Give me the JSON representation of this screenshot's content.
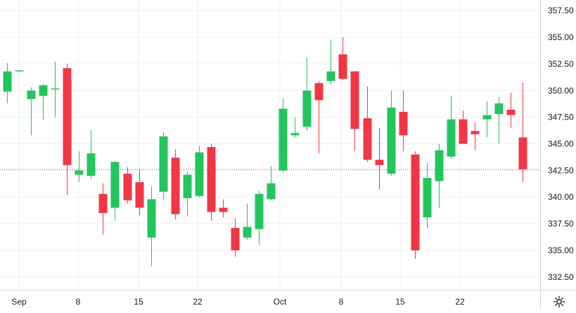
{
  "chart_data": {
    "type": "candlestick",
    "y_axis": {
      "ticks": [
        "357.50",
        "355.00",
        "352.50",
        "350.00",
        "347.50",
        "345.00",
        "342.50",
        "340.00",
        "337.50",
        "335.00",
        "332.50"
      ],
      "range": [
        331.3,
        358.5
      ]
    },
    "x_axis": {
      "ticks": [
        "Sep",
        "8",
        "15",
        "22",
        "Oct",
        "8",
        "15",
        "22"
      ]
    },
    "reference_line": {
      "value": 342.6,
      "style": "dotted",
      "color": "#f23645"
    },
    "grid": true,
    "colors": {
      "up": "#22c55e",
      "down": "#f23645",
      "grid": "#eceff3",
      "axis_text": "#131722"
    },
    "candles": [
      {
        "t": 0,
        "o": 349.9,
        "h": 352.6,
        "l": 348.8,
        "c": 351.8
      },
      {
        "t": 1,
        "o": 351.9,
        "h": 351.9,
        "l": 351.7,
        "c": 351.9
      },
      {
        "t": 2,
        "o": 349.2,
        "h": 350.3,
        "l": 345.8,
        "c": 350.0
      },
      {
        "t": 3,
        "o": 349.5,
        "h": 350.6,
        "l": 347.2,
        "c": 350.5
      },
      {
        "t": 4,
        "o": 350.1,
        "h": 352.7,
        "l": 347.5,
        "c": 350.2
      },
      {
        "t": 5,
        "o": 352.1,
        "h": 352.5,
        "l": 340.2,
        "c": 343.0
      },
      {
        "t": 6,
        "o": 342.1,
        "h": 344.3,
        "l": 341.4,
        "c": 342.5
      },
      {
        "t": 7,
        "o": 342.0,
        "h": 346.3,
        "l": 341.7,
        "c": 344.1
      },
      {
        "t": 8,
        "o": 340.3,
        "h": 341.3,
        "l": 336.5,
        "c": 338.5
      },
      {
        "t": 9,
        "o": 339.0,
        "h": 343.4,
        "l": 337.8,
        "c": 343.3
      },
      {
        "t": 10,
        "o": 342.2,
        "h": 342.8,
        "l": 339.4,
        "c": 339.7
      },
      {
        "t": 11,
        "o": 341.4,
        "h": 342.6,
        "l": 338.3,
        "c": 339.0
      },
      {
        "t": 12,
        "o": 336.2,
        "h": 341.0,
        "l": 333.5,
        "c": 339.8
      },
      {
        "t": 13,
        "o": 340.5,
        "h": 346.1,
        "l": 339.8,
        "c": 345.7
      },
      {
        "t": 14,
        "o": 343.7,
        "h": 344.5,
        "l": 337.9,
        "c": 338.4
      },
      {
        "t": 15,
        "o": 339.9,
        "h": 342.4,
        "l": 338.2,
        "c": 342.1
      },
      {
        "t": 16,
        "o": 340.1,
        "h": 344.8,
        "l": 340.0,
        "c": 344.2
      },
      {
        "t": 17,
        "o": 344.7,
        "h": 345.0,
        "l": 337.8,
        "c": 338.6
      },
      {
        "t": 18,
        "o": 339.0,
        "h": 339.8,
        "l": 338.1,
        "c": 338.6
      },
      {
        "t": 19,
        "o": 337.1,
        "h": 338.0,
        "l": 334.4,
        "c": 335.0
      },
      {
        "t": 20,
        "o": 336.2,
        "h": 339.4,
        "l": 336.0,
        "c": 337.2
      },
      {
        "t": 21,
        "o": 337.0,
        "h": 340.6,
        "l": 335.5,
        "c": 340.3
      },
      {
        "t": 22,
        "o": 339.8,
        "h": 342.9,
        "l": 339.7,
        "c": 341.3
      },
      {
        "t": 23,
        "o": 342.5,
        "h": 349.3,
        "l": 342.3,
        "c": 348.3
      },
      {
        "t": 24,
        "o": 345.8,
        "h": 347.5,
        "l": 345.6,
        "c": 346.0
      },
      {
        "t": 25,
        "o": 346.6,
        "h": 353.1,
        "l": 346.2,
        "c": 350.0
      },
      {
        "t": 26,
        "o": 350.7,
        "h": 350.9,
        "l": 344.1,
        "c": 349.1
      },
      {
        "t": 27,
        "o": 350.9,
        "h": 354.8,
        "l": 350.6,
        "c": 351.8
      },
      {
        "t": 28,
        "o": 353.4,
        "h": 355.0,
        "l": 351.0,
        "c": 351.1
      },
      {
        "t": 29,
        "o": 351.8,
        "h": 351.8,
        "l": 344.3,
        "c": 346.4
      },
      {
        "t": 30,
        "o": 347.4,
        "h": 350.4,
        "l": 343.3,
        "c": 343.5
      },
      {
        "t": 31,
        "o": 343.5,
        "h": 346.5,
        "l": 340.7,
        "c": 343.0
      },
      {
        "t": 32,
        "o": 342.2,
        "h": 350.0,
        "l": 342.0,
        "c": 348.4
      },
      {
        "t": 33,
        "o": 348.0,
        "h": 350.0,
        "l": 344.3,
        "c": 345.8
      },
      {
        "t": 34,
        "o": 344.0,
        "h": 344.3,
        "l": 334.2,
        "c": 335.0
      },
      {
        "t": 35,
        "o": 338.1,
        "h": 343.2,
        "l": 337.1,
        "c": 341.8
      },
      {
        "t": 36,
        "o": 341.5,
        "h": 345.0,
        "l": 339.0,
        "c": 344.4
      },
      {
        "t": 37,
        "o": 343.8,
        "h": 349.5,
        "l": 343.6,
        "c": 347.3
      },
      {
        "t": 38,
        "o": 347.3,
        "h": 348.1,
        "l": 345.0,
        "c": 345.0
      },
      {
        "t": 39,
        "o": 346.2,
        "h": 347.0,
        "l": 344.4,
        "c": 345.9
      },
      {
        "t": 40,
        "o": 347.3,
        "h": 349.0,
        "l": 345.6,
        "c": 347.7
      },
      {
        "t": 41,
        "o": 347.8,
        "h": 349.4,
        "l": 345.0,
        "c": 348.8
      },
      {
        "t": 42,
        "o": 348.2,
        "h": 349.8,
        "l": 346.5,
        "c": 347.7
      },
      {
        "t": 43,
        "o": 345.6,
        "h": 350.7,
        "l": 341.4,
        "c": 342.6
      }
    ]
  },
  "settings": {
    "icon": "gear-icon"
  }
}
